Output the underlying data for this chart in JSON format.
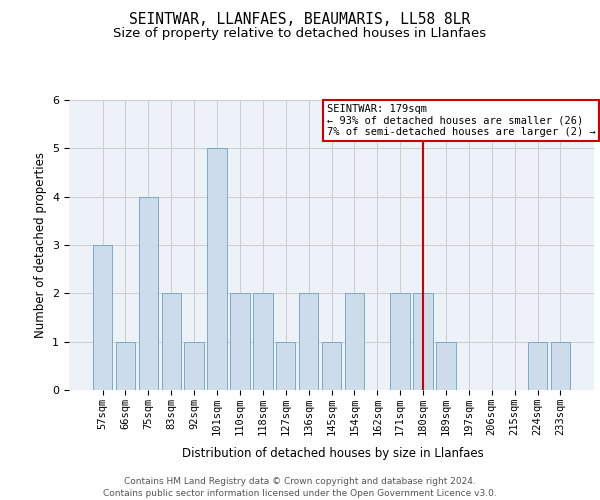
{
  "title1": "SEINTWAR, LLANFAES, BEAUMARIS, LL58 8LR",
  "title2": "Size of property relative to detached houses in Llanfaes",
  "xlabel": "Distribution of detached houses by size in Llanfaes",
  "ylabel": "Number of detached properties",
  "categories": [
    "57sqm",
    "66sqm",
    "75sqm",
    "83sqm",
    "92sqm",
    "101sqm",
    "110sqm",
    "118sqm",
    "127sqm",
    "136sqm",
    "145sqm",
    "154sqm",
    "162sqm",
    "171sqm",
    "180sqm",
    "189sqm",
    "197sqm",
    "206sqm",
    "215sqm",
    "224sqm",
    "233sqm"
  ],
  "values": [
    3,
    1,
    4,
    2,
    1,
    5,
    2,
    2,
    1,
    2,
    1,
    2,
    0,
    2,
    2,
    1,
    0,
    0,
    0,
    1,
    1
  ],
  "bar_color": "#cddceb",
  "bar_edgecolor": "#7aaac8",
  "bar_linewidth": 0.7,
  "vline_index": 14,
  "vline_color": "#cc0000",
  "annotation_line1": "SEINTWAR: 179sqm",
  "annotation_line2": "← 93% of detached houses are smaller (26)",
  "annotation_line3": "7% of semi-detached houses are larger (2) →",
  "annotation_box_edgecolor": "#cc0000",
  "ylim": [
    0,
    6
  ],
  "yticks": [
    0,
    1,
    2,
    3,
    4,
    5,
    6
  ],
  "grid_color": "#cccccc",
  "background_color": "#edf2f8",
  "footer1": "Contains HM Land Registry data © Crown copyright and database right 2024.",
  "footer2": "Contains public sector information licensed under the Open Government Licence v3.0.",
  "title1_fontsize": 10.5,
  "title2_fontsize": 9.5,
  "xlabel_fontsize": 8.5,
  "ylabel_fontsize": 8.5,
  "tick_fontsize": 7.5,
  "footer_fontsize": 6.5,
  "annot_fontsize": 7.5
}
